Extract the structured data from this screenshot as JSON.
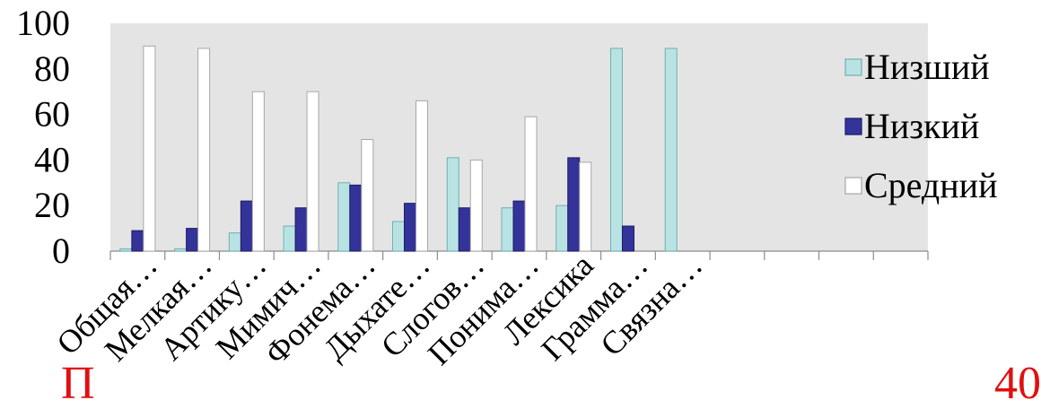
{
  "chart_data": {
    "type": "bar",
    "categories": [
      "Общая…",
      "Мелкая…",
      "Артику…",
      "Мимич…",
      "Фонема…",
      "Дыхате…",
      "Слогов…",
      "Понима…",
      "Лексика",
      "Грамма…",
      "Связна…",
      "",
      "",
      "",
      ""
    ],
    "series": [
      {
        "name": "Низший",
        "values": [
          1,
          1,
          8,
          11,
          30,
          13,
          41,
          19,
          20,
          89,
          89,
          null,
          null,
          null,
          null
        ],
        "color": "#b9e3e3",
        "stroke": "#6fb0b0"
      },
      {
        "name": "Низкий",
        "values": [
          9,
          10,
          22,
          19,
          29,
          21,
          19,
          22,
          41,
          11,
          null,
          null,
          null,
          null,
          null
        ],
        "color": "#343399",
        "stroke": "#1c1b66"
      },
      {
        "name": "Средний",
        "values": [
          90,
          89,
          70,
          70,
          49,
          66,
          40,
          59,
          39,
          null,
          null,
          null,
          null,
          null,
          null
        ],
        "color": "#ffffff",
        "stroke": "#a7a7a7"
      }
    ],
    "yticks": [
      "0",
      "20",
      "40",
      "60",
      "80",
      "100"
    ],
    "ylim": [
      0,
      100
    ],
    "title": "",
    "xlabel": "",
    "ylabel": "",
    "legend_position": "right",
    "plot_background": "#e4e4e4",
    "grid": false
  },
  "footer": {
    "text_left": "П",
    "text_right": "40"
  }
}
